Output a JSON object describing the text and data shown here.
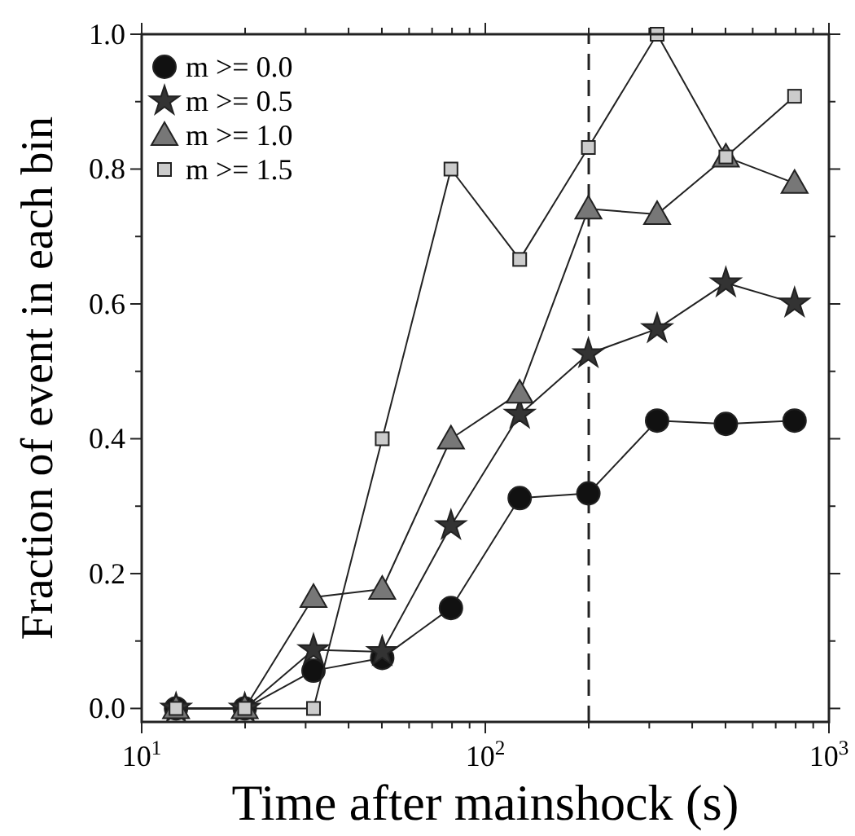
{
  "chart_data": {
    "type": "line",
    "xlabel": "Time after mainshock (s)",
    "ylabel": "Fraction of event in each bin",
    "log": "x",
    "x": [
      12.59,
      19.95,
      31.62,
      50.12,
      79.43,
      125.9,
      199.5,
      316.2,
      501.2,
      794.3
    ],
    "series": [
      {
        "name": "m >= 0.0",
        "color": "#111111",
        "marker": "circle",
        "values": [
          0,
          0,
          0.056,
          0.075,
          0.149,
          0.312,
          0.319,
          0.427,
          0.422,
          0.427
        ]
      },
      {
        "name": "m >= 0.5",
        "color": "#333333",
        "marker": "star",
        "values": [
          0,
          0,
          0.087,
          0.084,
          0.271,
          0.436,
          0.526,
          0.563,
          0.631,
          0.601
        ]
      },
      {
        "name": "m >= 1.0",
        "color": "#777777",
        "marker": "triangle",
        "values": [
          0,
          0,
          0.165,
          0.177,
          0.4,
          0.468,
          0.741,
          0.733,
          0.818,
          0.779
        ]
      },
      {
        "name": "m >= 1.5",
        "color": "#cccccc",
        "marker": "square",
        "values": [
          0,
          0,
          0,
          0.4,
          0.8,
          0.666,
          0.832,
          1.0,
          0.818,
          0.908
        ]
      }
    ],
    "xlim": [
      10,
      1000
    ],
    "xticks": [
      {
        "value": 10,
        "label": "10$^{1}$"
      },
      {
        "value": 20,
        "label": null
      },
      {
        "value": 30,
        "label": null
      },
      {
        "value": 40,
        "label": null
      },
      {
        "value": 50,
        "label": null
      },
      {
        "value": 60,
        "label": null
      },
      {
        "value": 70,
        "label": null
      },
      {
        "value": 80,
        "label": null
      },
      {
        "value": 90,
        "label": null
      },
      {
        "value": 100,
        "label": "10$^{2}$"
      },
      {
        "value": 200,
        "label": null
      },
      {
        "value": 300,
        "label": null
      },
      {
        "value": 400,
        "label": null
      },
      {
        "value": 500,
        "label": null
      },
      {
        "value": 600,
        "label": null
      },
      {
        "value": 700,
        "label": null
      },
      {
        "value": 800,
        "label": null
      },
      {
        "value": 900,
        "label": null
      },
      {
        "value": 1000,
        "label": "10$^{3}$"
      }
    ],
    "ylim": [
      -0.02,
      1.0
    ],
    "yticks": [
      {
        "value": 0,
        "label": "0.0"
      },
      {
        "value": 0.1,
        "label": null
      },
      {
        "value": 0.2,
        "label": "0.2"
      },
      {
        "value": 0.3,
        "label": null
      },
      {
        "value": 0.4,
        "label": "0.4"
      },
      {
        "value": 0.5,
        "label": null
      },
      {
        "value": 0.6,
        "label": "0.6"
      },
      {
        "value": 0.7,
        "label": null
      },
      {
        "value": 0.8,
        "label": "0.8"
      },
      {
        "value": 0.9,
        "label": null
      },
      {
        "value": 1.0,
        "label": "1.0"
      }
    ],
    "ref_lines": [
      {
        "axis": "x",
        "value": 200,
        "line_style": "dashed",
        "color": "#222222"
      }
    ],
    "legend": "top left",
    "grid": false
  }
}
